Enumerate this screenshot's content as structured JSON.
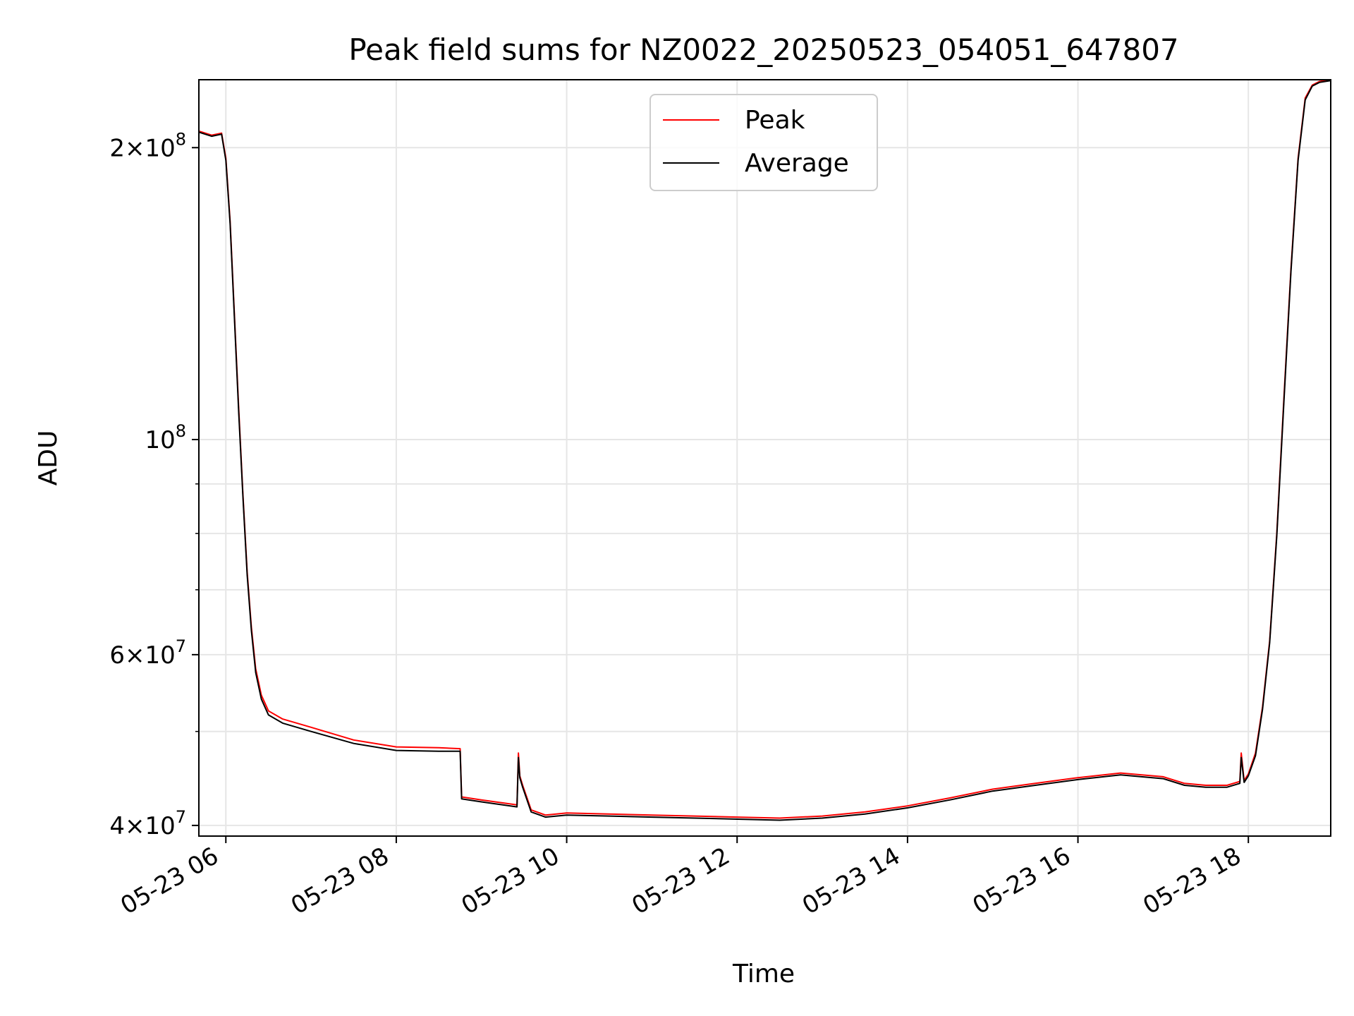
{
  "chart_data": {
    "type": "line",
    "title": "Peak field sums for NZ0022_20250523_054051_647807",
    "xlabel": "Time",
    "ylabel": "ADU",
    "yscale": "log",
    "ylim": [
      39000000,
      235000000
    ],
    "xlim": [
      "2025-05-23 05:41",
      "2025-05-23 18:58"
    ],
    "grid": true,
    "legend_position": "top-center",
    "x_ticks": [
      {
        "t": "2025-05-23 06:00",
        "label": "05-23 06"
      },
      {
        "t": "2025-05-23 08:00",
        "label": "05-23 08"
      },
      {
        "t": "2025-05-23 10:00",
        "label": "05-23 10"
      },
      {
        "t": "2025-05-23 12:00",
        "label": "05-23 12"
      },
      {
        "t": "2025-05-23 14:00",
        "label": "05-23 14"
      },
      {
        "t": "2025-05-23 16:00",
        "label": "05-23 16"
      },
      {
        "t": "2025-05-23 18:00",
        "label": "05-23 18"
      }
    ],
    "y_ticks": [
      {
        "value": 40000000,
        "mant": "4",
        "exp": "7"
      },
      {
        "value": 60000000,
        "mant": "6",
        "exp": "7"
      },
      {
        "value": 100000000,
        "mant": "",
        "exp": "8"
      },
      {
        "value": 200000000,
        "mant": "2",
        "exp": "8"
      }
    ],
    "y_minor_ticks": [
      50000000,
      70000000,
      80000000,
      90000000
    ],
    "series": [
      {
        "name": "Peak",
        "color": "#ff0000",
        "x": [
          "2025-05-23 05:41",
          "2025-05-23 05:50",
          "2025-05-23 05:57",
          "2025-05-23 06:00",
          "2025-05-23 06:03",
          "2025-05-23 06:06",
          "2025-05-23 06:09",
          "2025-05-23 06:12",
          "2025-05-23 06:15",
          "2025-05-23 06:18",
          "2025-05-23 06:21",
          "2025-05-23 06:25",
          "2025-05-23 06:30",
          "2025-05-23 06:40",
          "2025-05-23 07:00",
          "2025-05-23 07:30",
          "2025-05-23 08:00",
          "2025-05-23 08:30",
          "2025-05-23 08:45",
          "2025-05-23 08:46",
          "2025-05-23 09:00",
          "2025-05-23 09:25",
          "2025-05-23 09:26",
          "2025-05-23 09:27",
          "2025-05-23 09:29",
          "2025-05-23 09:35",
          "2025-05-23 09:45",
          "2025-05-23 10:00",
          "2025-05-23 10:30",
          "2025-05-23 11:00",
          "2025-05-23 11:30",
          "2025-05-23 12:00",
          "2025-05-23 12:30",
          "2025-05-23 13:00",
          "2025-05-23 13:30",
          "2025-05-23 14:00",
          "2025-05-23 14:30",
          "2025-05-23 15:00",
          "2025-05-23 15:30",
          "2025-05-23 16:00",
          "2025-05-23 16:30",
          "2025-05-23 17:00",
          "2025-05-23 17:15",
          "2025-05-23 17:30",
          "2025-05-23 17:45",
          "2025-05-23 17:54",
          "2025-05-23 17:55",
          "2025-05-23 17:57",
          "2025-05-23 18:00",
          "2025-05-23 18:05",
          "2025-05-23 18:10",
          "2025-05-23 18:15",
          "2025-05-23 18:20",
          "2025-05-23 18:25",
          "2025-05-23 18:30",
          "2025-05-23 18:35",
          "2025-05-23 18:40",
          "2025-05-23 18:45",
          "2025-05-23 18:50",
          "2025-05-23 18:58"
        ],
        "y": [
          208000000,
          206000000,
          207000000,
          195000000,
          168000000,
          135000000,
          108000000,
          88000000,
          73000000,
          64000000,
          58000000,
          54500000,
          52500000,
          51500000,
          50500000,
          49000000,
          48200000,
          48100000,
          48000000,
          42800000,
          42500000,
          42000000,
          47500000,
          45000000,
          44000000,
          41500000,
          41000000,
          41200000,
          41100000,
          41000000,
          40900000,
          40800000,
          40700000,
          40900000,
          41300000,
          41900000,
          42700000,
          43600000,
          44200000,
          44800000,
          45300000,
          44900000,
          44200000,
          44000000,
          44000000,
          44400000,
          47500000,
          44500000,
          45200000,
          47500000,
          53000000,
          62000000,
          80000000,
          110000000,
          150000000,
          195000000,
          225000000,
          232000000,
          234000000,
          235000000
        ]
      },
      {
        "name": "Average",
        "color": "#000000",
        "x": [
          "2025-05-23 05:41",
          "2025-05-23 05:50",
          "2025-05-23 05:57",
          "2025-05-23 06:00",
          "2025-05-23 06:03",
          "2025-05-23 06:06",
          "2025-05-23 06:09",
          "2025-05-23 06:12",
          "2025-05-23 06:15",
          "2025-05-23 06:18",
          "2025-05-23 06:21",
          "2025-05-23 06:25",
          "2025-05-23 06:30",
          "2025-05-23 06:40",
          "2025-05-23 07:00",
          "2025-05-23 07:30",
          "2025-05-23 08:00",
          "2025-05-23 08:30",
          "2025-05-23 08:45",
          "2025-05-23 08:46",
          "2025-05-23 09:00",
          "2025-05-23 09:25",
          "2025-05-23 09:26",
          "2025-05-23 09:27",
          "2025-05-23 09:29",
          "2025-05-23 09:35",
          "2025-05-23 09:45",
          "2025-05-23 10:00",
          "2025-05-23 10:30",
          "2025-05-23 11:00",
          "2025-05-23 11:30",
          "2025-05-23 12:00",
          "2025-05-23 12:30",
          "2025-05-23 13:00",
          "2025-05-23 13:30",
          "2025-05-23 14:00",
          "2025-05-23 14:30",
          "2025-05-23 15:00",
          "2025-05-23 15:30",
          "2025-05-23 16:00",
          "2025-05-23 16:30",
          "2025-05-23 17:00",
          "2025-05-23 17:15",
          "2025-05-23 17:30",
          "2025-05-23 17:45",
          "2025-05-23 17:54",
          "2025-05-23 17:55",
          "2025-05-23 17:57",
          "2025-05-23 18:00",
          "2025-05-23 18:05",
          "2025-05-23 18:10",
          "2025-05-23 18:15",
          "2025-05-23 18:20",
          "2025-05-23 18:25",
          "2025-05-23 18:30",
          "2025-05-23 18:35",
          "2025-05-23 18:40",
          "2025-05-23 18:45",
          "2025-05-23 18:50",
          "2025-05-23 18:58"
        ],
        "y": [
          207500000,
          205500000,
          206500000,
          194000000,
          167000000,
          134000000,
          107000000,
          87500000,
          72500000,
          63500000,
          57500000,
          54000000,
          52000000,
          51000000,
          50000000,
          48600000,
          47800000,
          47700000,
          47700000,
          42600000,
          42300000,
          41800000,
          47000000,
          44800000,
          43800000,
          41300000,
          40800000,
          41000000,
          40900000,
          40800000,
          40700000,
          40600000,
          40500000,
          40700000,
          41100000,
          41700000,
          42500000,
          43400000,
          44000000,
          44600000,
          45100000,
          44700000,
          44000000,
          43800000,
          43800000,
          44200000,
          47000000,
          44300000,
          45000000,
          47200000,
          52700000,
          61700000,
          79500000,
          109000000,
          149000000,
          194000000,
          224000000,
          231500000,
          233500000,
          234500000
        ]
      }
    ]
  }
}
